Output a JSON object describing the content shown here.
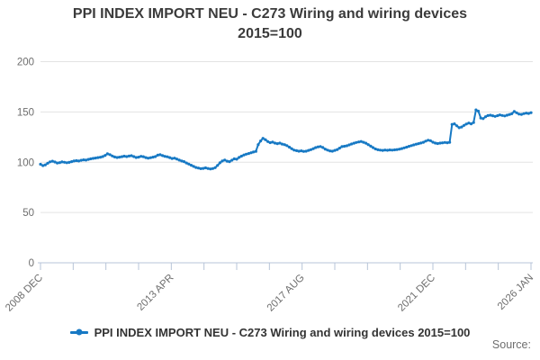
{
  "title": {
    "line1": "PPI INDEX IMPORT NEU - C273 Wiring and wiring devices",
    "line2": "2015=100"
  },
  "legend": {
    "label": "PPI INDEX IMPORT NEU - C273 Wiring and wiring devices 2015=100"
  },
  "footer": {
    "source_label": "Source:"
  },
  "colors": {
    "line": "#1779c4",
    "grid": "#e3e3e3",
    "axis": "#b7c4d8",
    "tick_text": "#6e6e6e",
    "title_text": "#3b3b3b"
  },
  "chart_data": {
    "type": "line",
    "title": "PPI INDEX IMPORT NEU - C273 Wiring and wiring devices",
    "subtitle": "2015=100",
    "xlabel": "",
    "ylabel": "",
    "ylim": [
      0,
      200
    ],
    "y_ticks": [
      0,
      50,
      100,
      150,
      200
    ],
    "grid": true,
    "legend_position": "bottom",
    "x_tick_count": 16,
    "x_labels": [
      {
        "tick": 0,
        "label": "2008 DEC"
      },
      {
        "tick": 4,
        "label": "2013 APR"
      },
      {
        "tick": 8,
        "label": "2017 AUG"
      },
      {
        "tick": 12,
        "label": "2021 DEC"
      },
      {
        "tick": 15,
        "label": "2026 JAN"
      }
    ],
    "frequency": "monthly",
    "series": [
      {
        "name": "PPI INDEX IMPORT NEU - C273 Wiring and wiring devices 2015=100",
        "values": [
          98.0,
          96.6,
          97.4,
          99.0,
          100.4,
          101.0,
          100.2,
          99.2,
          99.6,
          100.3,
          100.0,
          99.5,
          99.9,
          100.6,
          101.2,
          101.6,
          101.2,
          101.9,
          102.4,
          102.1,
          102.8,
          103.4,
          103.8,
          104.2,
          104.6,
          105.0,
          105.6,
          106.8,
          108.4,
          107.6,
          106.2,
          105.2,
          104.7,
          105.1,
          105.5,
          106.0,
          105.6,
          106.1,
          106.5,
          105.6,
          104.7,
          105.1,
          105.9,
          105.5,
          104.6,
          104.1,
          104.5,
          105.1,
          105.6,
          107.0,
          107.5,
          106.6,
          105.9,
          105.4,
          104.6,
          103.7,
          104.1,
          103.2,
          102.1,
          101.2,
          100.6,
          99.2,
          98.2,
          97.0,
          95.8,
          94.8,
          94.2,
          93.6,
          93.9,
          94.4,
          93.8,
          93.3,
          93.7,
          94.6,
          96.8,
          99.4,
          101.2,
          102.2,
          101.0,
          100.6,
          102.0,
          103.4,
          103.0,
          104.8,
          106.0,
          107.2,
          108.0,
          108.6,
          109.4,
          110.2,
          110.8,
          117.5,
          121.2,
          123.8,
          122.4,
          120.5,
          119.5,
          120.0,
          119.0,
          118.5,
          119.0,
          118.0,
          117.5,
          116.5,
          115.0,
          113.5,
          112.0,
          111.5,
          111.0,
          111.3,
          110.8,
          111.0,
          111.8,
          112.5,
          113.5,
          114.5,
          115.3,
          115.6,
          114.6,
          113.0,
          112.0,
          111.2,
          111.0,
          111.8,
          112.6,
          114.0,
          115.5,
          115.9,
          116.3,
          117.2,
          118.1,
          118.9,
          119.6,
          120.2,
          120.6,
          119.8,
          118.9,
          117.5,
          116.0,
          114.5,
          113.2,
          112.4,
          112.0,
          111.8,
          112.1,
          111.9,
          112.2,
          112.0,
          112.3,
          112.6,
          113.0,
          113.6,
          114.3,
          115.0,
          115.8,
          116.5,
          117.2,
          117.9,
          118.5,
          119.1,
          119.8,
          121.0,
          121.9,
          121.4,
          119.9,
          119.0,
          118.6,
          119.0,
          119.3,
          119.6,
          119.4,
          119.8,
          137.6,
          138.2,
          136.2,
          134.3,
          135.0,
          136.6,
          138.0,
          139.0,
          138.2,
          139.5,
          152.0,
          150.8,
          144.0,
          143.4,
          145.2,
          146.4,
          146.8,
          146.2,
          145.6,
          146.3,
          147.0,
          146.5,
          146.0,
          146.8,
          147.5,
          148.2,
          150.4,
          149.2,
          147.8,
          147.6,
          148.3,
          148.8,
          148.5,
          149.3
        ]
      }
    ]
  }
}
